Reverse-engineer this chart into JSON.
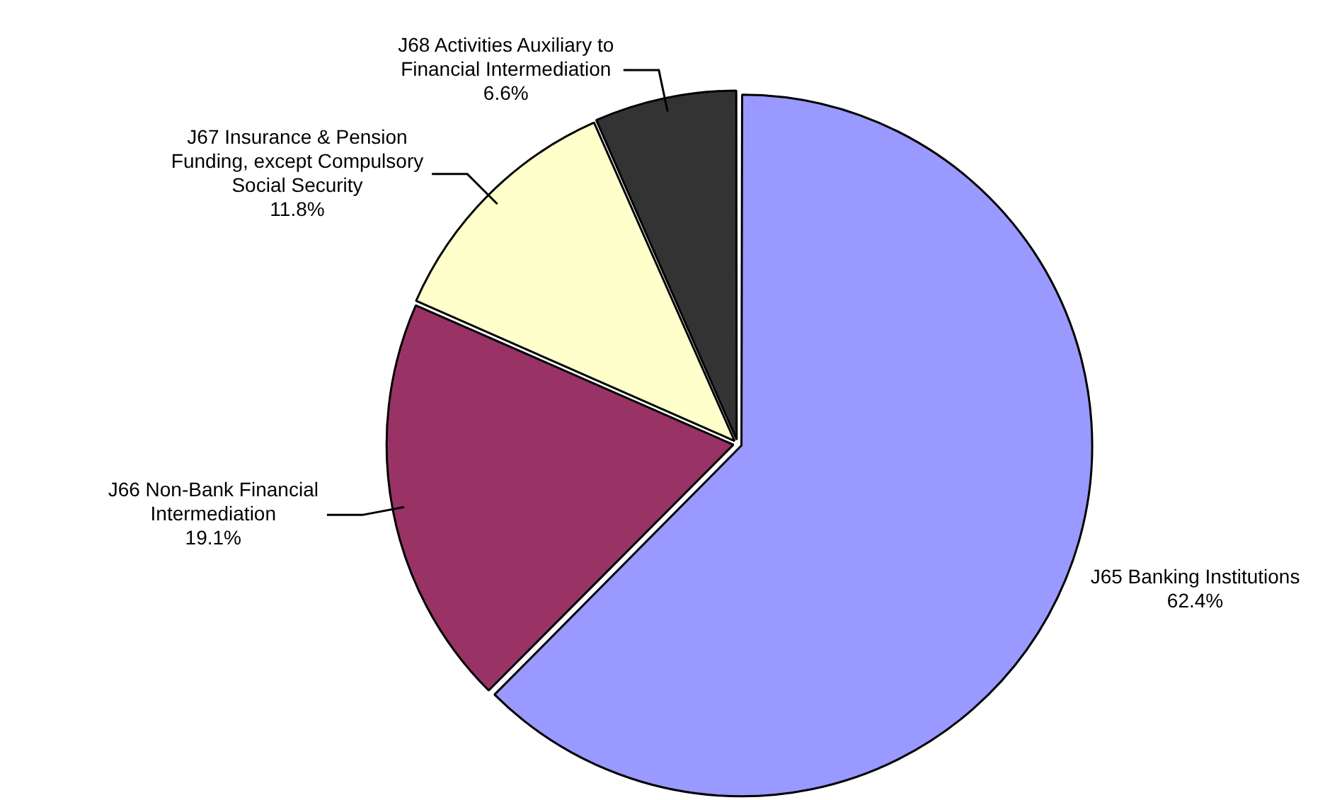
{
  "chart_data": {
    "type": "pie",
    "categories": [
      "J65 Banking Institutions",
      "J66 Non-Bank Financial Intermediation",
      "J67 Insurance & Pension Funding, except Compulsory Social Security",
      "J68 Activities Auxiliary to Financial Intermediation"
    ],
    "values": [
      62.4,
      19.1,
      11.8,
      6.6
    ],
    "value_labels": [
      "62.4%",
      "19.1%",
      "11.8%",
      "6.6%"
    ],
    "colors": [
      "#9999ff",
      "#993366",
      "#ffffcc",
      "#333333"
    ],
    "legend": false
  }
}
